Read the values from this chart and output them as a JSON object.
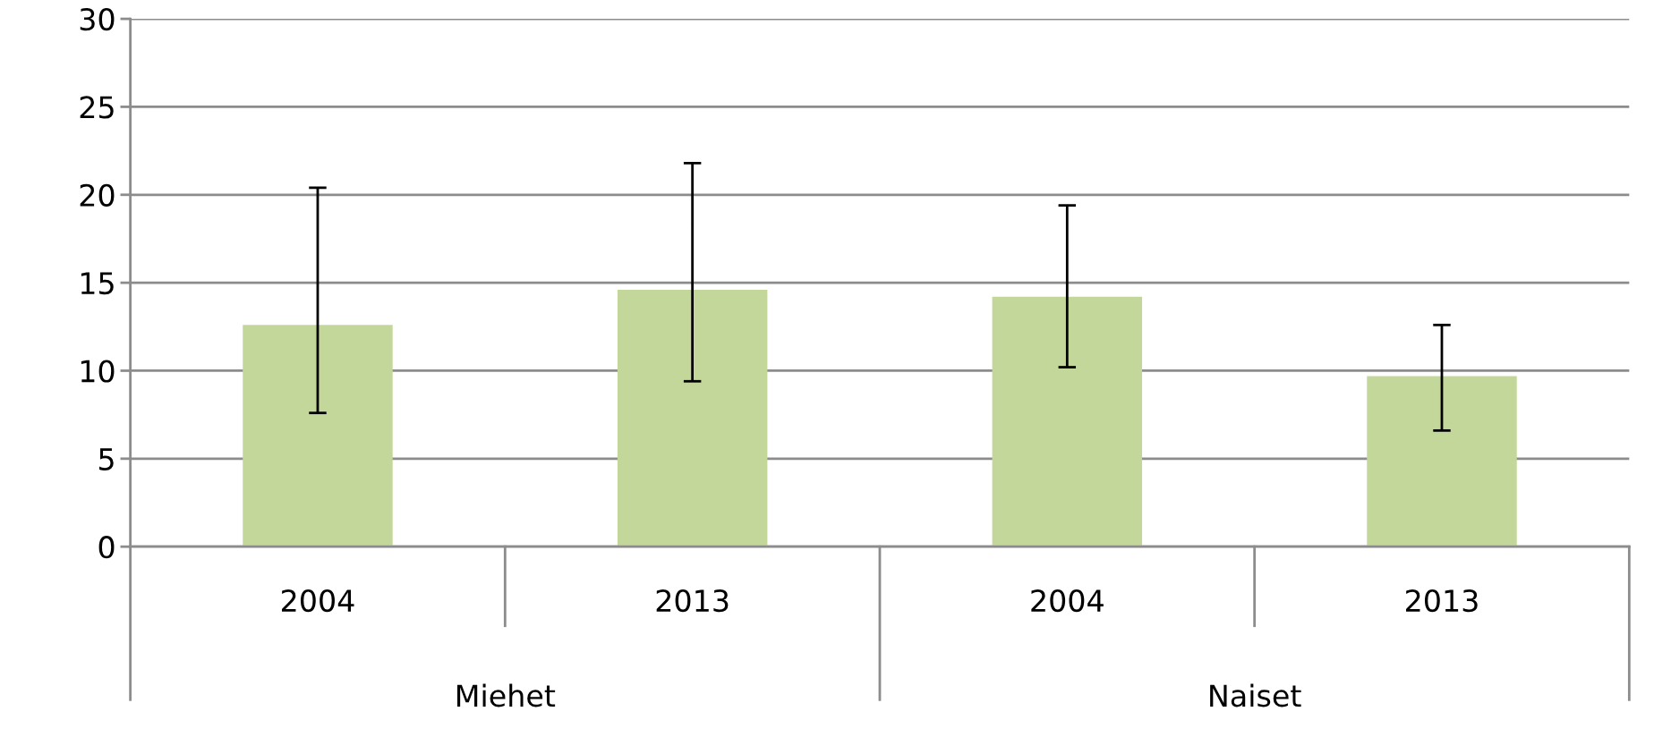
{
  "chart_data": {
    "type": "bar",
    "categories": [
      "2004",
      "2013",
      "2004",
      "2013"
    ],
    "values": [
      12.6,
      14.6,
      14.2,
      9.7
    ],
    "errors": [
      [
        7.6,
        20.4
      ],
      [
        9.4,
        21.8
      ],
      [
        10.2,
        19.4
      ],
      [
        6.6,
        12.6
      ]
    ],
    "color": "#c4d79b",
    "ylim": [
      0,
      30
    ],
    "yticks": [
      0,
      5,
      10,
      15,
      20,
      25,
      30
    ],
    "grid": "y",
    "annotations": [
      "Miehet",
      "Naiset"
    ]
  }
}
